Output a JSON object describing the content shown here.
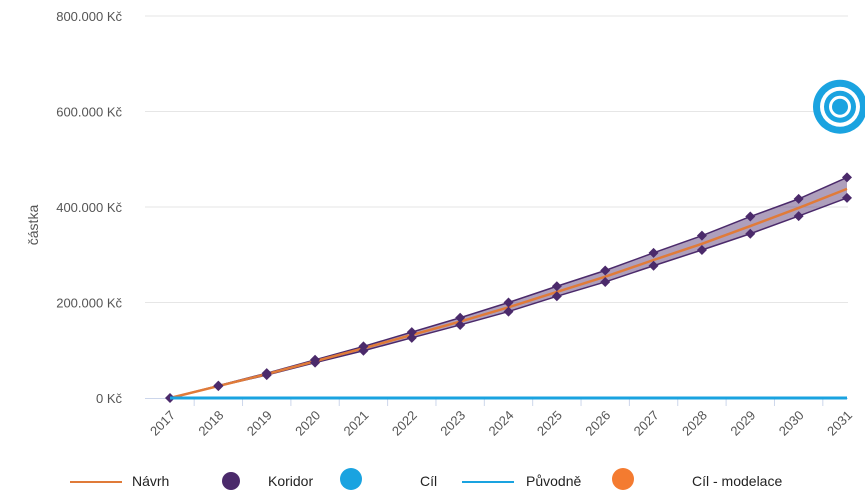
{
  "chart_data": {
    "type": "line",
    "ylabel": "částka",
    "xlabel": "",
    "ylim": [
      0,
      800000
    ],
    "y_ticks": [
      {
        "value": 0,
        "label": "0 Kč"
      },
      {
        "value": 200000,
        "label": "200.000 Kč"
      },
      {
        "value": 400000,
        "label": "400.000 Kč"
      },
      {
        "value": 600000,
        "label": "600.000 Kč"
      },
      {
        "value": 800000,
        "label": "800.000 Kč"
      }
    ],
    "categories": [
      "2017",
      "2018",
      "2019",
      "2020",
      "2021",
      "2022",
      "2023",
      "2024",
      "2025",
      "2026",
      "2027",
      "2028",
      "2029",
      "2030",
      "2031"
    ],
    "series": [
      {
        "name": "Návrh",
        "type": "line",
        "color": "#E07B39",
        "values": [
          0,
          25000,
          50000,
          77000,
          104000,
          132000,
          160000,
          190000,
          222000,
          254000,
          289000,
          323000,
          360000,
          398000,
          438000
        ]
      },
      {
        "name": "Koridor",
        "type": "band",
        "color": "#4B2A6B",
        "upper": [
          0,
          26000,
          52000,
          80000,
          108000,
          138000,
          168000,
          200000,
          234000,
          267000,
          304000,
          340000,
          380000,
          417000,
          462000
        ],
        "lower": [
          0,
          25000,
          48000,
          74000,
          99000,
          126000,
          153000,
          181000,
          213000,
          243000,
          277000,
          310000,
          344000,
          381000,
          419000
        ]
      },
      {
        "name": "Cíl",
        "type": "marker",
        "color": "#1AA3E0",
        "x": "2031",
        "y": 610000
      },
      {
        "name": "Původně",
        "type": "line",
        "color": "#1AA3E0",
        "values": [
          0,
          0,
          0,
          0,
          0,
          0,
          0,
          0,
          0,
          0,
          0,
          0,
          0,
          0,
          0
        ]
      },
      {
        "name": "Cíl - modelace",
        "type": "marker",
        "color": "#F47B30"
      }
    ],
    "legend": {
      "placement": "bottom"
    },
    "grid": {
      "horizontal": true,
      "vertical": false
    }
  }
}
